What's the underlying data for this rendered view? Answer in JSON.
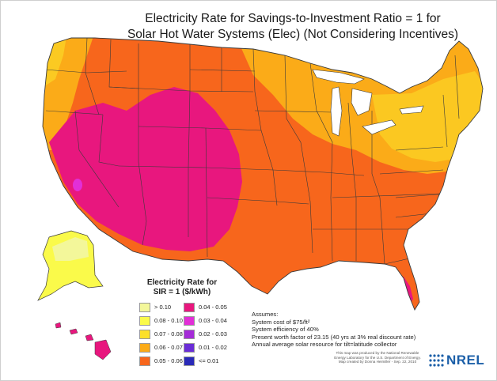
{
  "title": {
    "line1": "Electricity Rate for Savings-to-Investment Ratio = 1 for",
    "line2": "Solar Hot Water Systems (Elec) (Not Considering Incentives)"
  },
  "legend": {
    "title_line1": "Electricity Rate for",
    "title_line2": "SIR = 1  ($/kWh)",
    "items": [
      {
        "label": "> 0.10",
        "color": "#f3f79a"
      },
      {
        "label": "0.08 - 0.10",
        "color": "#fafa4a"
      },
      {
        "label": "0.07 - 0.08",
        "color": "#fce02a"
      },
      {
        "label": "0.06 - 0.07",
        "color": "#fbab18"
      },
      {
        "label": "0.05 - 0.06",
        "color": "#f7661c"
      },
      {
        "label": "0.04 - 0.05",
        "color": "#e8177e"
      },
      {
        "label": "0.03 - 0.04",
        "color": "#e22fd7"
      },
      {
        "label": "0.02 - 0.03",
        "color": "#a52bd8"
      },
      {
        "label": "0.01 - 0.02",
        "color": "#6a2dd6"
      },
      {
        "label": "<= 0.01",
        "color": "#2a2ab8"
      }
    ]
  },
  "assumptions": {
    "heading": "Assumes:",
    "lines": [
      "System cost of $75/ft²",
      "System efficiency of 40%",
      "Present worth factor of 23.15 (40 yrs at 3% real discount rate)",
      "Annual average solar resource for tilt=latitude collector"
    ]
  },
  "credit": {
    "lines": [
      "This map was produced by the National Renewable",
      "Energy Laboratory for the U.S. Department of Energy.",
      "Map created by Donna Heimiller - Sep. 22, 2010"
    ]
  },
  "logo": {
    "text": "NREL",
    "color": "#1b5fa8"
  }
}
